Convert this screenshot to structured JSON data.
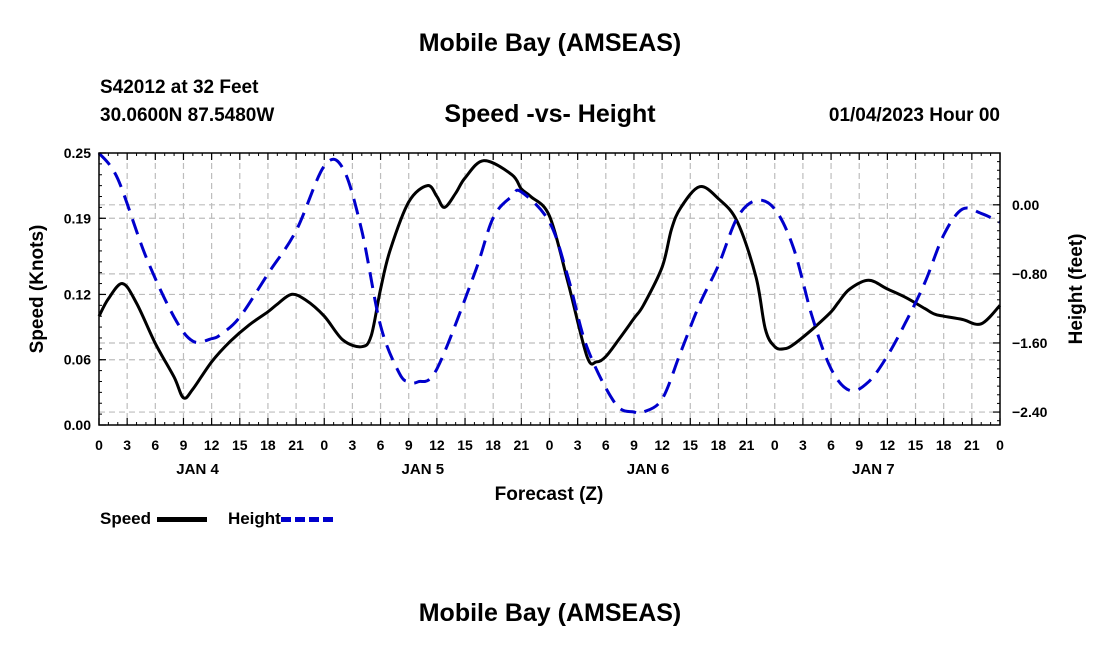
{
  "header": {
    "title": "Mobile Bay (AMSEAS)",
    "station": "S42012 at 32 Feet",
    "coords": "30.0600N  87.5480W",
    "datetime": "01/04/2023 Hour 00"
  },
  "footer": {
    "title": "Mobile Bay (AMSEAS)"
  },
  "chart_data": {
    "type": "line",
    "title": "Speed -vs- Height",
    "xlabel": "Forecast (Z)",
    "ylabel": "Speed (Knots)",
    "y2label": "Height (feet)",
    "x_range_hours": [
      0,
      96
    ],
    "x_tick_labels": [
      "0",
      "3",
      "6",
      "9",
      "12",
      "15",
      "18",
      "21",
      "0",
      "3",
      "6",
      "9",
      "12",
      "15",
      "18",
      "21",
      "0",
      "3",
      "6",
      "9",
      "12",
      "15",
      "18",
      "21",
      "0",
      "3",
      "6",
      "9",
      "12",
      "15",
      "18",
      "21",
      "0"
    ],
    "day_labels": [
      {
        "label": "JAN 4",
        "hour": 10.5
      },
      {
        "label": "JAN 5",
        "hour": 34.5
      },
      {
        "label": "JAN 6",
        "hour": 58.5
      },
      {
        "label": "JAN 7",
        "hour": 82.5
      }
    ],
    "ylim": [
      0,
      0.25
    ],
    "y_ticks": [
      0.0,
      0.06,
      0.12,
      0.19,
      0.25
    ],
    "y_tick_labels": [
      "0.00",
      "0.06",
      "0.12",
      "0.19",
      "0.25"
    ],
    "y2lim": [
      -2.55,
      0.6
    ],
    "y2_ticks": [
      0.0,
      -0.8,
      -1.6,
      -2.4
    ],
    "y2_tick_labels": [
      "0.00",
      "−0.80",
      "−1.60",
      "−2.40"
    ],
    "grid": true,
    "legend_placement": "bottom-left",
    "series": [
      {
        "name": "Speed",
        "axis": "left",
        "color": "#000000",
        "style": "solid",
        "x": [
          0,
          1,
          2.5,
          4,
          6,
          8,
          9,
          10,
          12,
          14,
          16,
          18,
          19,
          20.5,
          22,
          24,
          26,
          28,
          29,
          30,
          31,
          33,
          35,
          36,
          36.8,
          38,
          39,
          41,
          44,
          45,
          46,
          48,
          50,
          52,
          53,
          54,
          55.5,
          57,
          58,
          60,
          61,
          62,
          64,
          66,
          68,
          70,
          71,
          72,
          73,
          74,
          76,
          78,
          78.8,
          80,
          82,
          84,
          86,
          88,
          89,
          90,
          92,
          94,
          96
        ],
        "values": [
          0.1,
          0.116,
          0.13,
          0.112,
          0.075,
          0.044,
          0.025,
          0.033,
          0.058,
          0.077,
          0.092,
          0.104,
          0.111,
          0.12,
          0.115,
          0.1,
          0.078,
          0.072,
          0.082,
          0.125,
          0.16,
          0.205,
          0.22,
          0.21,
          0.2,
          0.213,
          0.227,
          0.243,
          0.23,
          0.217,
          0.21,
          0.192,
          0.13,
          0.063,
          0.058,
          0.063,
          0.08,
          0.098,
          0.11,
          0.145,
          0.18,
          0.2,
          0.219,
          0.208,
          0.187,
          0.136,
          0.088,
          0.072,
          0.07,
          0.074,
          0.088,
          0.104,
          0.113,
          0.125,
          0.133,
          0.125,
          0.117,
          0.107,
          0.102,
          0.1,
          0.097,
          0.093,
          0.11
        ]
      },
      {
        "name": "Height",
        "axis": "right",
        "color": "#0000cc",
        "style": "dashed",
        "x": [
          0,
          2,
          5,
          8,
          10,
          12,
          13,
          15,
          18,
          21,
          24,
          26,
          28,
          30,
          32,
          33,
          34,
          36,
          40,
          42,
          44,
          45,
          48,
          50,
          52,
          55,
          57,
          58,
          60,
          62,
          64,
          66,
          68,
          70,
          72,
          74,
          76,
          78,
          80,
          82,
          84,
          86,
          88,
          90,
          92,
          94,
          96
        ],
        "values": [
          0.6,
          0.3,
          -0.6,
          -1.3,
          -1.58,
          -1.55,
          -1.5,
          -1.3,
          -0.8,
          -0.3,
          0.45,
          0.42,
          -0.3,
          -1.4,
          -1.95,
          -2.05,
          -2.05,
          -1.9,
          -0.8,
          -0.15,
          0.1,
          0.15,
          -0.2,
          -0.85,
          -1.65,
          -2.3,
          -2.4,
          -2.4,
          -2.25,
          -1.7,
          -1.15,
          -0.7,
          -0.15,
          0.05,
          -0.05,
          -0.5,
          -1.3,
          -1.9,
          -2.15,
          -2.05,
          -1.75,
          -1.35,
          -0.9,
          -0.35,
          -0.05,
          -0.1,
          -0.2
        ]
      }
    ]
  },
  "legend": {
    "items": [
      {
        "label": "Speed",
        "color": "#000000",
        "style": "solid"
      },
      {
        "label": "Height",
        "color": "#0000cc",
        "style": "dashed"
      }
    ]
  }
}
